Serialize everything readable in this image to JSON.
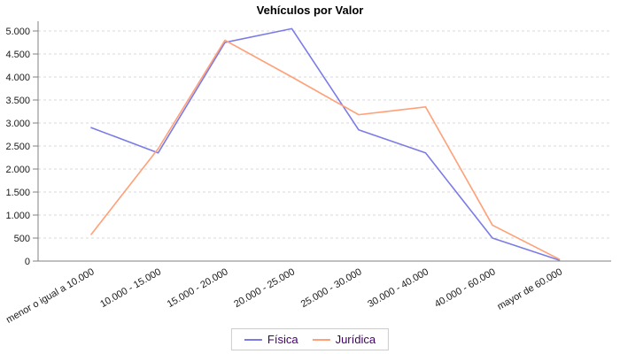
{
  "chart_data": {
    "type": "line",
    "title": "Vehículos por Valor",
    "categories": [
      "menor o igual a 10.000",
      "10.000 - 15.000",
      "15.000 - 20.000",
      "20.000 - 25.000",
      "25.000 - 30.000",
      "30.000 - 40.000",
      "40.000 - 60.000",
      "mayor de 60.000"
    ],
    "series": [
      {
        "name": "Física",
        "color": "#7B7BE8",
        "values": [
          2900,
          2350,
          4750,
          5050,
          2850,
          2350,
          500,
          20
        ]
      },
      {
        "name": "Jurídica",
        "color": "#FFA078",
        "values": [
          580,
          2440,
          4800,
          4000,
          3180,
          3350,
          780,
          40
        ]
      }
    ],
    "ylim": [
      0,
      5000
    ],
    "y_tick_interval": 500,
    "y_ticks": [
      {
        "value": 0,
        "label": "0"
      },
      {
        "value": 500,
        "label": "500"
      },
      {
        "value": 1000,
        "label": "1.000"
      },
      {
        "value": 1500,
        "label": "1.500"
      },
      {
        "value": 2000,
        "label": "2.000"
      },
      {
        "value": 2500,
        "label": "2.500"
      },
      {
        "value": 3000,
        "label": "3.000"
      },
      {
        "value": 3500,
        "label": "3.500"
      },
      {
        "value": 4000,
        "label": "4.000"
      },
      {
        "value": 4500,
        "label": "4.500"
      },
      {
        "value": 5000,
        "label": "5.000"
      }
    ],
    "xlabel": "",
    "ylabel": "",
    "grid": "horizontal-dashed",
    "legend_position": "bottom",
    "colors": {
      "grid_line": "#d9d9d9",
      "axis_line": "#808080",
      "tick_label": "#1a1a1a",
      "legend_text": "#400066",
      "background": "#ffffff"
    }
  }
}
